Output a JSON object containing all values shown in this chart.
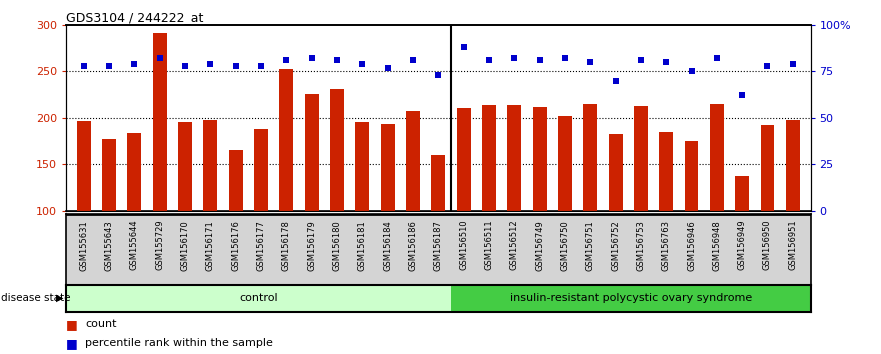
{
  "title": "GDS3104 / 244222_at",
  "categories": [
    "GSM155631",
    "GSM155643",
    "GSM155644",
    "GSM155729",
    "GSM156170",
    "GSM156171",
    "GSM156176",
    "GSM156177",
    "GSM156178",
    "GSM156179",
    "GSM156180",
    "GSM156181",
    "GSM156184",
    "GSM156186",
    "GSM156187",
    "GSM156510",
    "GSM156511",
    "GSM156512",
    "GSM156749",
    "GSM156750",
    "GSM156751",
    "GSM156752",
    "GSM156753",
    "GSM156763",
    "GSM156946",
    "GSM156948",
    "GSM156949",
    "GSM156950",
    "GSM156951"
  ],
  "counts": [
    196,
    177,
    184,
    291,
    195,
    197,
    165,
    188,
    252,
    226,
    231,
    195,
    193,
    207,
    160,
    210,
    214,
    214,
    212,
    202,
    215,
    183,
    213,
    185,
    175,
    215,
    137,
    192,
    197
  ],
  "percentiles": [
    78,
    78,
    79,
    82,
    78,
    79,
    78,
    78,
    81,
    82,
    81,
    79,
    77,
    81,
    73,
    88,
    81,
    82,
    81,
    82,
    80,
    70,
    81,
    80,
    75,
    82,
    62,
    78,
    79
  ],
  "n_control": 15,
  "n_disease": 14,
  "control_label": "control",
  "disease_label": "insulin-resistant polycystic ovary syndrome",
  "bar_color": "#cc2200",
  "dot_color": "#0000cc",
  "control_bg": "#ccffcc",
  "disease_bg": "#44cc44",
  "tick_bg": "#d4d4d4",
  "bg_color": "#ffffff",
  "ylim_left": [
    100,
    300
  ],
  "ylim_right": [
    0,
    100
  ],
  "yticks_left": [
    100,
    150,
    200,
    250,
    300
  ],
  "yticks_right": [
    0,
    25,
    50,
    75,
    100
  ],
  "legend_count_label": "count",
  "legend_pct_label": "percentile rank within the sample"
}
